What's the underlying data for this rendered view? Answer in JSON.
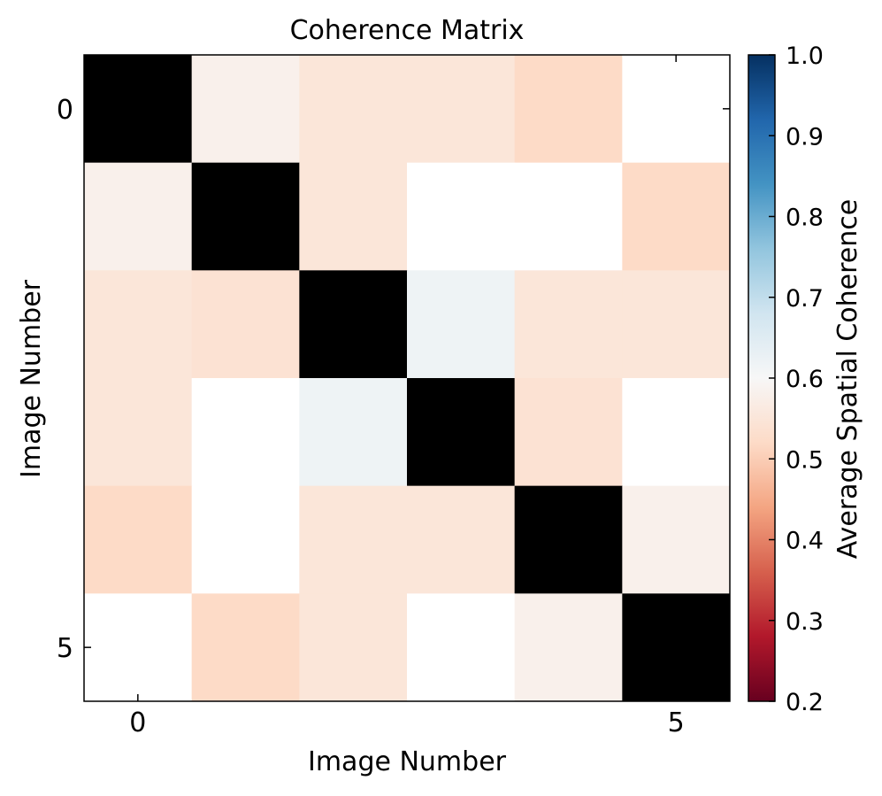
{
  "chart_data": {
    "type": "heatmap",
    "title": "Coherence Matrix",
    "xlabel": "Image Number",
    "ylabel": "Image Number",
    "x_ticks": [
      0,
      5
    ],
    "y_ticks": [
      0,
      5
    ],
    "matrix": [
      [
        null,
        0.58,
        0.55,
        0.55,
        0.52,
        null
      ],
      [
        0.58,
        null,
        0.55,
        null,
        null,
        0.52
      ],
      [
        0.55,
        0.54,
        null,
        0.62,
        0.55,
        0.55
      ],
      [
        0.55,
        null,
        0.62,
        null,
        0.54,
        null
      ],
      [
        0.52,
        null,
        0.55,
        0.55,
        null,
        0.58
      ],
      [
        null,
        0.52,
        0.55,
        null,
        0.58,
        null
      ]
    ],
    "diagonal_color": "#000000",
    "missing_color": "#ffffff",
    "colorbar": {
      "label": "Average Spatial Coherence",
      "range": [
        0.2,
        1.0
      ],
      "ticks": [
        "0.2",
        "0.3",
        "0.4",
        "0.5",
        "0.6",
        "0.7",
        "0.8",
        "0.9",
        "1.0"
      ],
      "colormap": "RdBu",
      "stops": [
        "#67001f",
        "#b2182b",
        "#d6604d",
        "#f4a582",
        "#fddbc7",
        "#f7f7f7",
        "#d1e5f0",
        "#92c5de",
        "#4393c3",
        "#2166ac",
        "#053061"
      ]
    },
    "grid": false
  }
}
